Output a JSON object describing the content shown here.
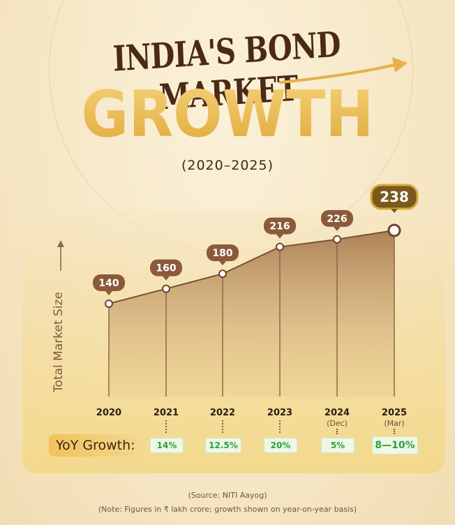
{
  "title_line1": "INDIA'S BOND MARKET",
  "title_line2": "GROWTH",
  "subtitle": "(2020–2025)",
  "y_axis_label": "Total Market Size",
  "yoy_label": "YoY Growth:",
  "source": "(Source: NITI Aayog)",
  "note": "(Note: Figures in ₹ lakh crore; growth shown on year-on-year basis)",
  "colors": {
    "title_dark": "#4a2a14",
    "title_gold": "#e9b94a",
    "line": "#7a5236",
    "label_bg": "#8a5a3a",
    "highlight_bg": "#7a5a1c",
    "growth_green": "#2f9e3c"
  },
  "chart_data": {
    "type": "area",
    "title": "INDIA'S BOND MARKET GROWTH",
    "subtitle": "(2020–2025)",
    "xlabel": "",
    "ylabel": "Total Market Size",
    "categories": [
      "2020",
      "2021",
      "2022",
      "2023",
      "2024",
      "2025"
    ],
    "category_notes": [
      "",
      "",
      "",
      "",
      "(Dec)",
      "(Mar)"
    ],
    "values": [
      140,
      160,
      180,
      216,
      226,
      238
    ],
    "data_labels": [
      "140",
      "160",
      "180",
      "216",
      "226",
      "238"
    ],
    "yoy_growth": [
      "14%",
      "12.5%",
      "20%",
      "5%",
      "8—10%"
    ],
    "grid": false,
    "legend": "none"
  }
}
